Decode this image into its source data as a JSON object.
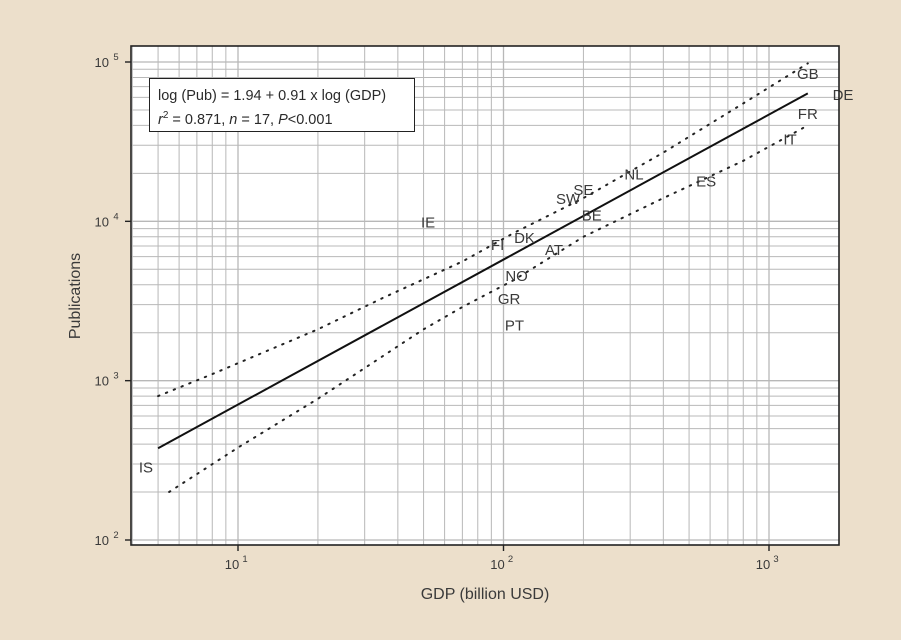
{
  "chart_data": {
    "type": "scatter",
    "xlabel": "GDP (billion USD)",
    "ylabel": "Publications",
    "xscale": "log",
    "yscale": "log",
    "xlim": [
      3.6,
      2000
    ],
    "ylim": [
      100,
      130000
    ],
    "x_ticks": [
      {
        "base": "10",
        "exp": "1",
        "value": 10
      },
      {
        "base": "10",
        "exp": "2",
        "value": 100
      },
      {
        "base": "10",
        "exp": "3",
        "value": 1000
      }
    ],
    "y_ticks": [
      {
        "base": "10",
        "exp": "2",
        "value": 100
      },
      {
        "base": "10",
        "exp": "3",
        "value": 1000
      },
      {
        "base": "10",
        "exp": "4",
        "value": 10000
      },
      {
        "base": "10",
        "exp": "5",
        "value": 100000
      }
    ],
    "grid": true,
    "points": [
      {
        "label": "IS",
        "x": 4.5,
        "y": 290
      },
      {
        "label": "IE",
        "x": 52,
        "y": 10000
      },
      {
        "label": "PT",
        "x": 110,
        "y": 2250
      },
      {
        "label": "GR",
        "x": 105,
        "y": 3300
      },
      {
        "label": "NO",
        "x": 112,
        "y": 4600
      },
      {
        "label": "FI",
        "x": 95,
        "y": 7200
      },
      {
        "label": "DK",
        "x": 120,
        "y": 8000
      },
      {
        "label": "AT",
        "x": 155,
        "y": 6700
      },
      {
        "label": "BE",
        "x": 215,
        "y": 11000
      },
      {
        "label": "SW",
        "x": 175,
        "y": 14000
      },
      {
        "label": "SE",
        "x": 200,
        "y": 16000
      },
      {
        "label": "NL",
        "x": 310,
        "y": 20000
      },
      {
        "label": "ES",
        "x": 580,
        "y": 18000
      },
      {
        "label": "IT",
        "x": 1200,
        "y": 33000
      },
      {
        "label": "FR",
        "x": 1400,
        "y": 48000
      },
      {
        "label": "DE",
        "x": 1900,
        "y": 63000
      },
      {
        "label": "GB",
        "x": 1400,
        "y": 85000
      }
    ],
    "regression": {
      "intercept": 1.94,
      "slope": 0.91,
      "x_range": [
        5,
        1400
      ]
    },
    "confidence_band": {
      "upper": {
        "x": [
          5,
          8,
          20,
          35,
          70,
          110,
          200,
          400,
          800,
          1400
        ],
        "y": [
          800,
          1100,
          2100,
          3300,
          5600,
          8500,
          14000,
          27000,
          55000,
          98000
        ]
      },
      "lower": {
        "x": [
          5.5,
          10,
          20,
          50,
          70,
          110,
          200,
          400,
          800,
          1400
        ],
        "y": [
          200,
          380,
          770,
          2100,
          2900,
          4300,
          8000,
          14000,
          24000,
          40000
        ]
      }
    },
    "annotation": {
      "line1": "log (Pub) = 1.94 + 0.91 x log (GDP)",
      "r2_label": "r",
      "r2_sup": "2",
      "r2_rest": " = 0.871, ",
      "n_label": "n",
      "n_rest": " = 17, ",
      "p_label": "P",
      "p_rest": "<0.001"
    },
    "colors": {
      "background": "#ecdfcb",
      "plot": "#ffffff",
      "grid": "#b8b8b8",
      "line": "#111111",
      "text": "#3a3a3a"
    }
  }
}
